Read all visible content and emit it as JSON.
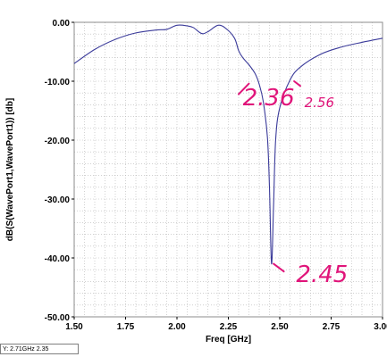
{
  "chart_data": {
    "type": "line",
    "xlabel": "Freq [GHz]",
    "ylabel": "dB(S(WavePort1,WavePort1)) [db]",
    "xlim": [
      1.5,
      3.0
    ],
    "ylim": [
      -50.0,
      0.0
    ],
    "x_ticks": [
      1.5,
      1.75,
      2.0,
      2.25,
      2.5,
      2.75,
      3.0
    ],
    "x_tick_labels": [
      "1.50",
      "1.75",
      "2.00",
      "2.25",
      "2.50",
      "2.75",
      "3.00"
    ],
    "y_ticks": [
      0,
      -10,
      -20,
      -30,
      -40,
      -50
    ],
    "y_tick_labels": [
      "0.00",
      "-10.00",
      "-20.00",
      "-30.00",
      "-40.00",
      "-50.00"
    ],
    "grid": true,
    "line_color": "#3b3b9a",
    "series": [
      {
        "x": [
          1.5,
          1.6,
          1.7,
          1.8,
          1.9,
          1.95,
          2.0,
          2.05,
          2.08,
          2.12,
          2.15,
          2.2,
          2.24,
          2.28,
          2.3,
          2.32,
          2.35,
          2.38,
          2.4,
          2.42,
          2.44,
          2.45,
          2.46,
          2.47,
          2.48,
          2.5,
          2.55,
          2.6,
          2.7,
          2.8,
          2.9,
          3.0
        ],
        "y": [
          -7.0,
          -4.6,
          -2.9,
          -1.8,
          -1.3,
          -1.2,
          -0.5,
          -0.6,
          -0.9,
          -1.9,
          -1.6,
          -0.5,
          -1.1,
          -2.7,
          -4.8,
          -6.0,
          -7.2,
          -8.7,
          -10.5,
          -13.5,
          -19.5,
          -28.0,
          -41.0,
          -31.0,
          -20.0,
          -14.5,
          -9.8,
          -7.6,
          -5.4,
          -4.2,
          -3.4,
          -2.7
        ]
      }
    ],
    "annotations": [
      {
        "text": "2.36",
        "x": 2.32,
        "y": -12.0,
        "size": "large"
      },
      {
        "text": "2.56",
        "x": 2.62,
        "y": -13.5,
        "size": "small"
      },
      {
        "text": "2.45",
        "x": 2.58,
        "y": -42.0,
        "size": "large"
      }
    ],
    "annotation_color": "#e0157a",
    "annotation_strokes": [
      {
        "from": [
          2.3,
          -12.2
        ],
        "to": [
          2.35,
          -10.4
        ]
      },
      {
        "from": [
          2.57,
          -10.0
        ],
        "to": [
          2.6,
          -10.8
        ]
      },
      {
        "from": [
          2.47,
          -41.0
        ],
        "to": [
          2.52,
          -42.3
        ]
      }
    ]
  },
  "status_bar": {
    "text": "Y: 2.71GHz 2.35"
  }
}
